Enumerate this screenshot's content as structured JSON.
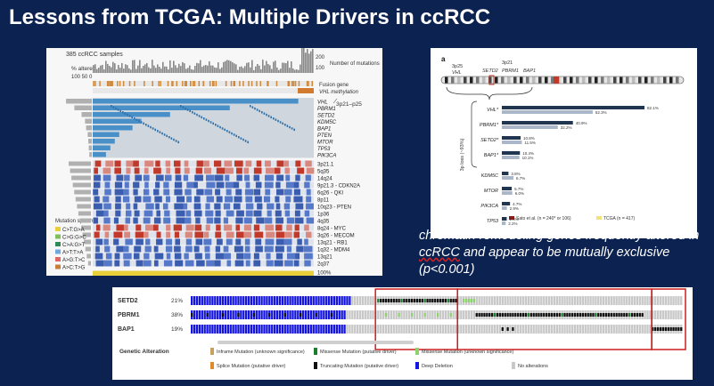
{
  "slide": {
    "title": "Lessons from TCGA: Multiple Drivers in ccRCC",
    "callout": {
      "part1": "chromatin remodeling genes frequently altered in ",
      "underlined": "ccRCC",
      "part2": " and appear to be mutually exclusive (p<0.001)"
    }
  },
  "oncoprint": {
    "samples_label": "385 ccRCC samples",
    "pct_label": "% altered",
    "pct_axis": "100 50 0",
    "mut_axis": [
      "200",
      "100"
    ],
    "mut_label": "Number of mutations",
    "fusion_label": "Fusion gene",
    "methylation_label": "VHL methylation",
    "genes": [
      "VHL",
      "PBRM1",
      "SETD2",
      "KDM5C",
      "BAP1",
      "PTEN",
      "MTOR",
      "TP53",
      "PIK3CA"
    ],
    "region_label": "3p21–p25",
    "cna": [
      "3p21.1",
      "5q35",
      "14q24",
      "9p21.3 - CDKN2A",
      "6q26 - QKI",
      "8p11",
      "10q23 - PTEN",
      "1p36",
      "4q35",
      "8q24 - MYC",
      "3q26 - MECOM",
      "13q21 - RB1",
      "1q32 - MDM4",
      "13q21",
      "2q37"
    ],
    "spectrum_title": "Mutation spectrum",
    "spectrum": [
      "C>T:G>A",
      "C>G:G>C",
      "C>A:G>T",
      "A>T:T>A",
      "A>G:T>C",
      "A>C:T>G"
    ],
    "spectrum_colors": [
      "#e8cf3a",
      "#7fbf5a",
      "#2e8b57",
      "#6fa8dc",
      "#e06666",
      "#c77d3a"
    ],
    "pct_axis_right": [
      "100%",
      "50%",
      "0%"
    ]
  },
  "chrom_panel": {
    "panel_letter": "a",
    "bands": [
      "3p25",
      "3p21"
    ],
    "genes_top": [
      "VHL",
      "SETD2",
      "PBRM1",
      "BAP1"
    ],
    "side_label": "3p loss (~93%)",
    "bars": [
      {
        "gene": "VHL*",
        "a": 82.1,
        "b": 52.3,
        "a_label": "82.1%",
        "b_label": "52.3%"
      },
      {
        "gene": "PBRM1*",
        "a": 40.9,
        "b": 32.2,
        "a_label": "40.9%",
        "b_label": "32.2%"
      },
      {
        "gene": "SETD2*",
        "a": 10.8,
        "b": 11.5,
        "a_label": "10.8%",
        "b_label": "11.5%"
      },
      {
        "gene": "BAP1*",
        "a": 10.4,
        "b": 10.1,
        "a_label": "10.4%",
        "b_label": "10.1%"
      },
      {
        "gene": "KDM5C",
        "a": 3.8,
        "b": 6.7,
        "a_label": "3.8%",
        "b_label": "6.7%"
      },
      {
        "gene": "MTOR",
        "a": 5.7,
        "b": 6.0,
        "a_label": "5.7%",
        "b_label": "6.0%"
      },
      {
        "gene": "PIK3CA",
        "a": 4.7,
        "b": 2.9,
        "a_label": "4.7%",
        "b_label": "2.9%"
      },
      {
        "gene": "TP53",
        "a": 2.8,
        "b": 2.2,
        "a_label": "2.8%",
        "b_label": "2.2%"
      }
    ],
    "legend_a": "Sato et al. (n = 240* or 106)",
    "legend_b": "TCGA (n = 417)",
    "color_a": "#1f3550",
    "color_b": "#aab7c8"
  },
  "bottom_panel": {
    "rows": [
      {
        "gene": "SETD2",
        "pct": "21%"
      },
      {
        "gene": "PBRM1",
        "pct": "38%"
      },
      {
        "gene": "BAP1",
        "pct": "19%"
      }
    ],
    "legend_title": "Genetic Alteration",
    "legend": [
      {
        "label": "Inframe Mutation (unknown significance)",
        "color": "#c8a060"
      },
      {
        "label": "Missense Mutation (putative driver)",
        "color": "#1a7f2a"
      },
      {
        "label": "Missense Mutation (unknown significance)",
        "color": "#8fd06f"
      },
      {
        "label": "Splice Mutation (putative driver)",
        "color": "#e08a2a"
      },
      {
        "label": "Truncating Mutation (putative driver)",
        "color": "#111111"
      },
      {
        "label": "Deep Deletion",
        "color": "#1515e0"
      },
      {
        "label": "No alterations",
        "color": "#c8c8c8"
      }
    ]
  }
}
